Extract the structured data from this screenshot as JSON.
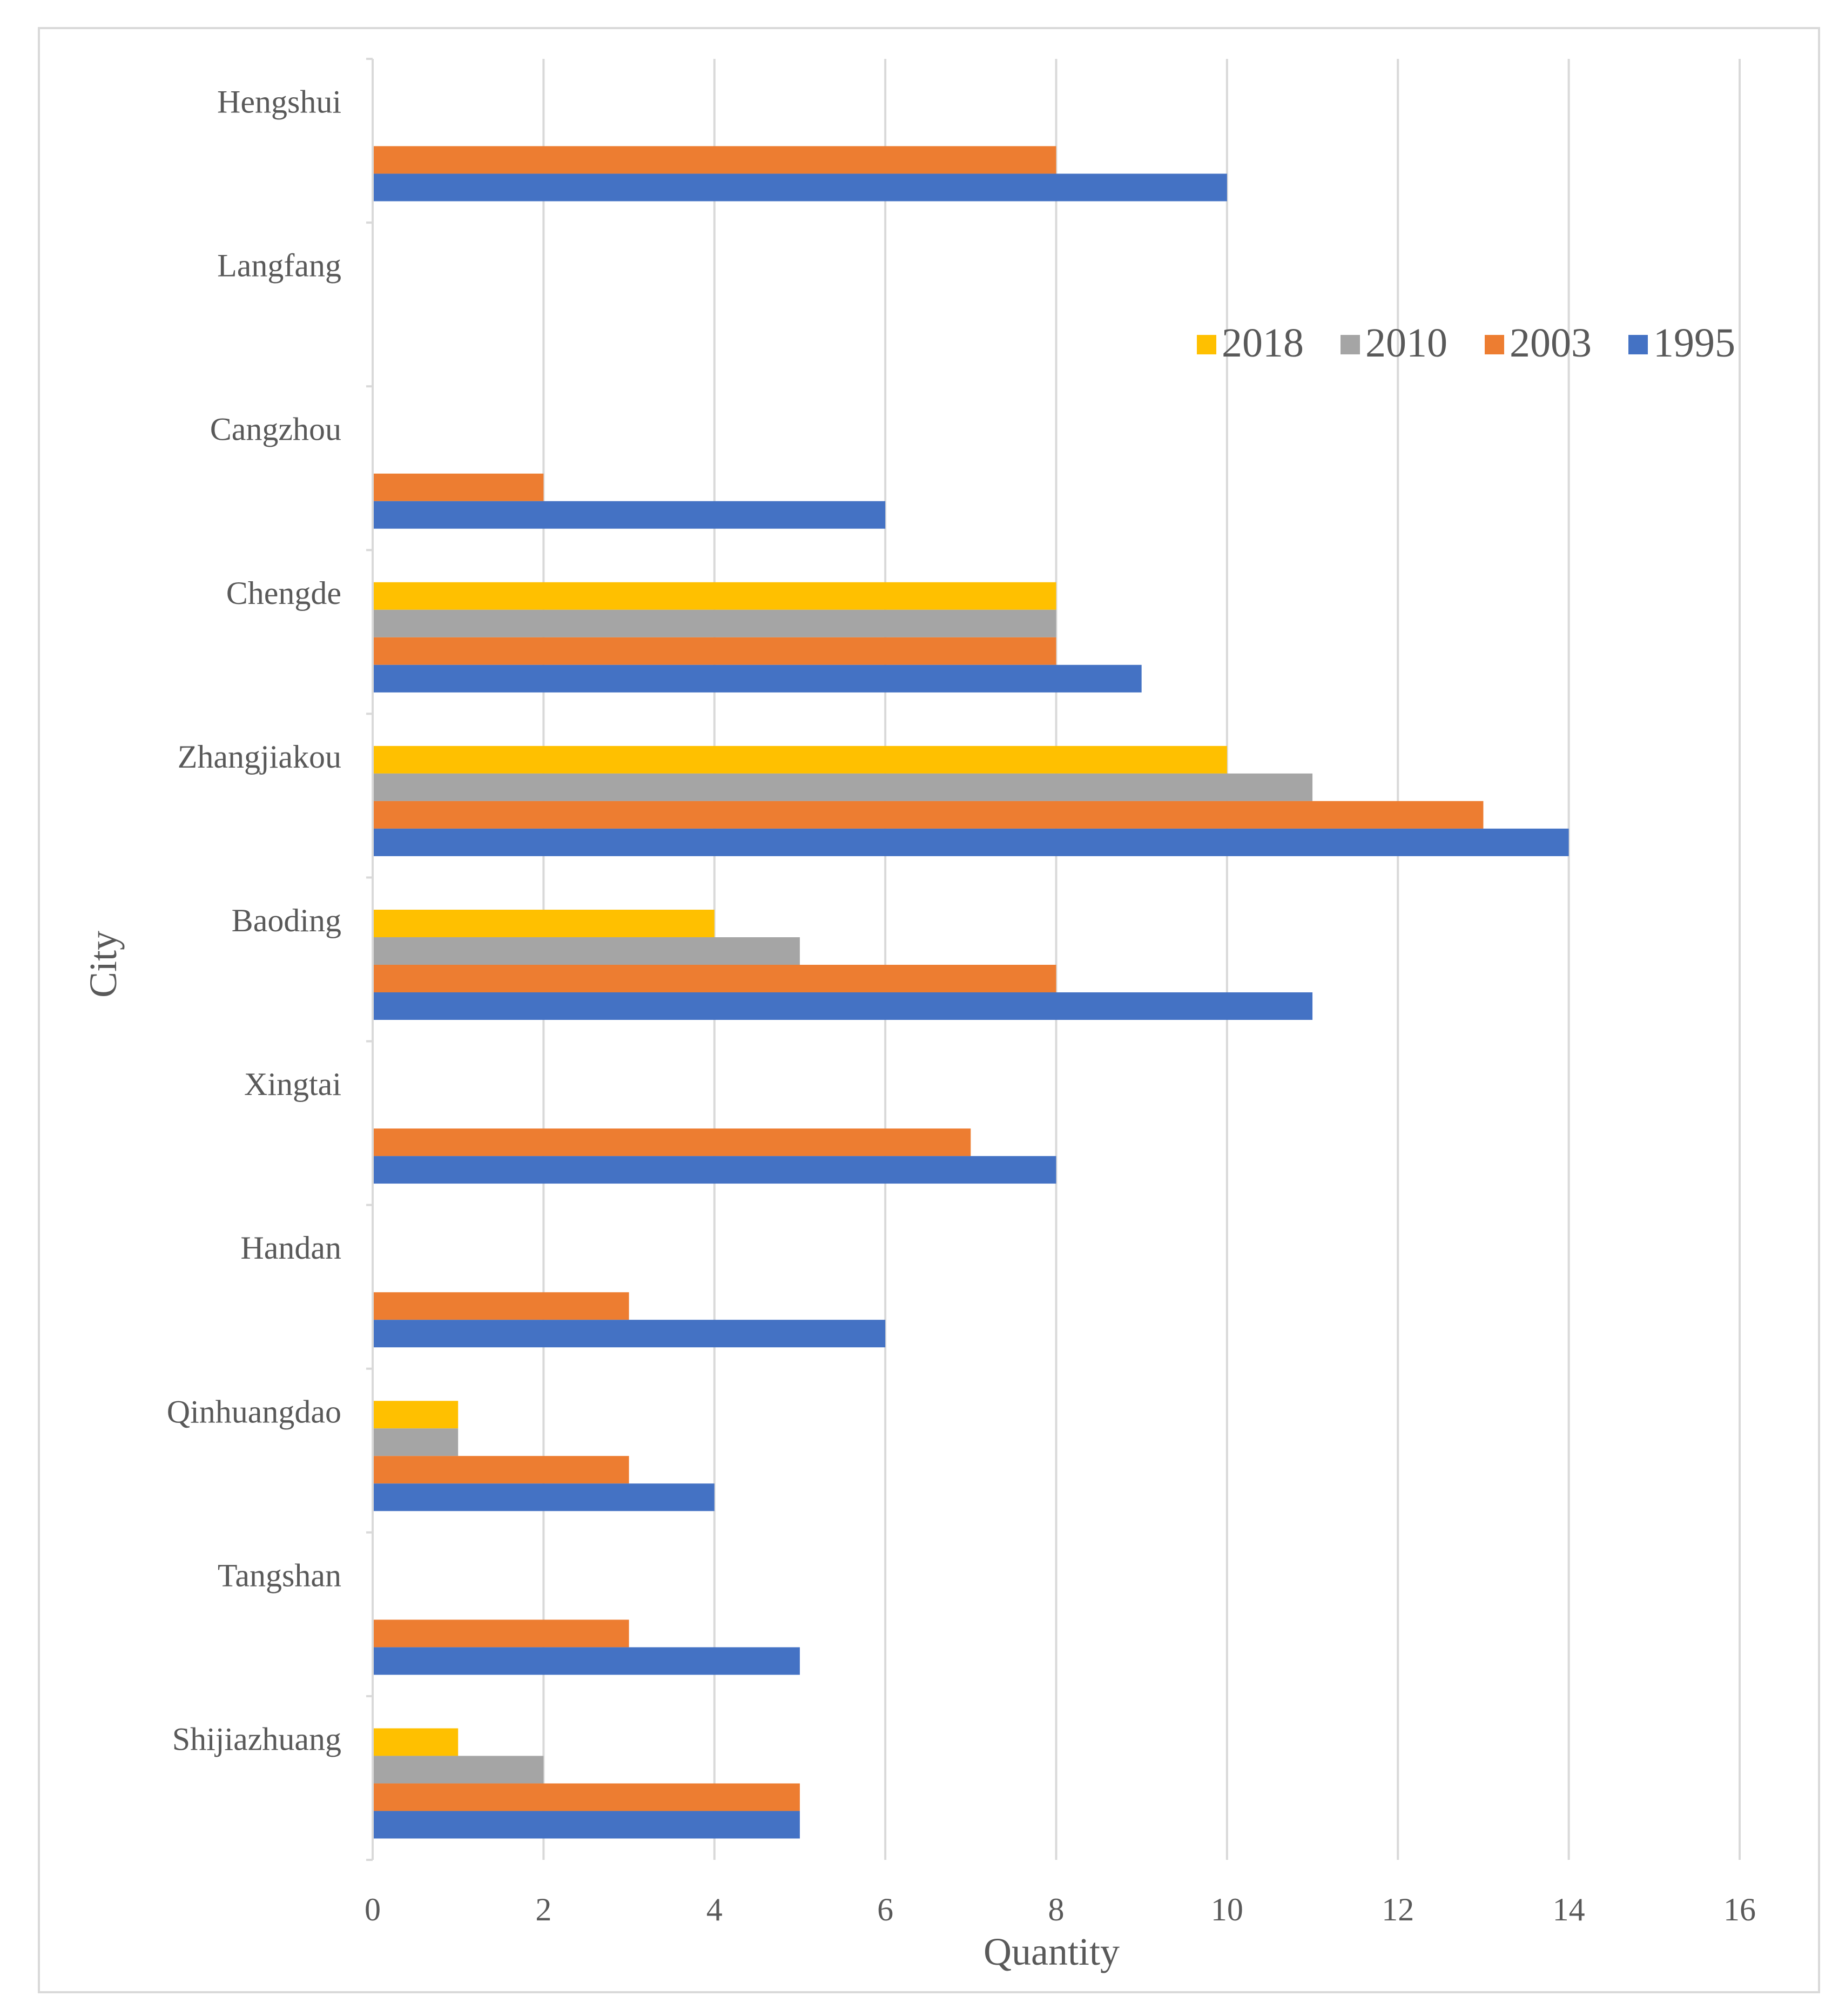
{
  "chart_data": {
    "type": "bar",
    "orientation": "horizontal",
    "title": "",
    "xlabel": "Quantity",
    "ylabel": "City",
    "xlim": [
      0,
      16
    ],
    "xticks": [
      0,
      2,
      4,
      6,
      8,
      10,
      12,
      14,
      16
    ],
    "grid": "vertical",
    "legend_position": "top-right",
    "categories": [
      "Shijiazhuang",
      "Tangshan",
      "Qinhuangdao",
      "Handan",
      "Xingtai",
      "Baoding",
      "Zhangjiakou",
      "Chengde",
      "Cangzhou",
      "Langfang",
      "Hengshui"
    ],
    "series": [
      {
        "name": "2018",
        "color": "#FFC000",
        "values": [
          1,
          0,
          1,
          0,
          0,
          4,
          10,
          8,
          0,
          0,
          0
        ]
      },
      {
        "name": "2010",
        "color": "#A5A5A5",
        "values": [
          2,
          0,
          1,
          0,
          0,
          5,
          11,
          8,
          0,
          0,
          0
        ]
      },
      {
        "name": "2003",
        "color": "#ED7D31",
        "values": [
          5,
          3,
          3,
          3,
          7,
          8,
          13,
          8,
          2,
          0,
          8
        ]
      },
      {
        "name": "1995",
        "color": "#4472C4",
        "values": [
          5,
          5,
          4,
          6,
          8,
          11,
          14,
          9,
          6,
          0,
          10
        ]
      }
    ]
  }
}
